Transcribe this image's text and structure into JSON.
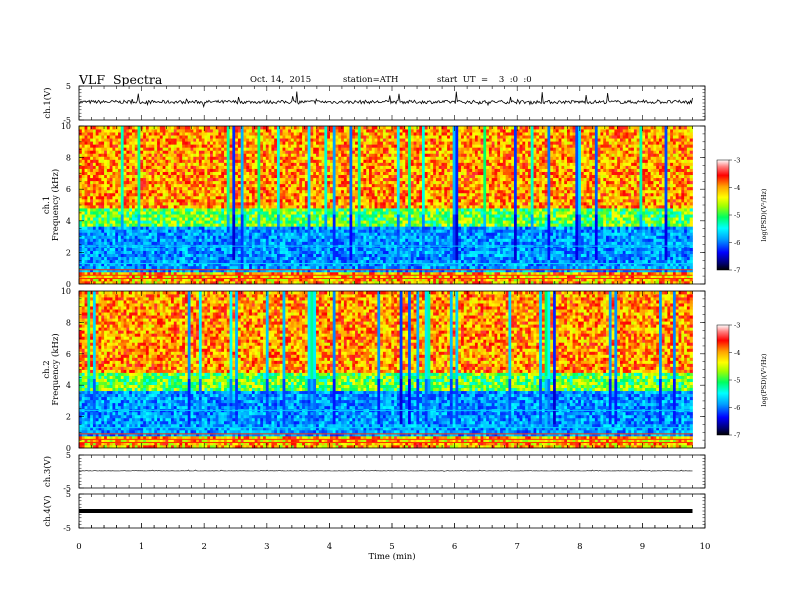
{
  "header": {
    "title": "VLF  Spectra",
    "date": "Oct. 14,  2015",
    "station": "station=ATH",
    "start": "start  UT  =    3  :0  :0"
  },
  "chart_data": [
    {
      "type": "line",
      "name": "ch1-waveform",
      "ylabel": "ch.1(V)",
      "ylim": [
        -5,
        5
      ],
      "yticks": [
        {
          "v": 5,
          "label": "5"
        },
        {
          "v": -5,
          "label": "-5"
        }
      ],
      "xlim": [
        0,
        10
      ],
      "baseline": 0.3,
      "noise": 0.5
    },
    {
      "type": "heatmap",
      "name": "ch1-spectrogram",
      "ylabel": "Frequency  (kHz)",
      "ylabel2": "ch.1",
      "xlim": [
        0,
        9.8
      ],
      "ylim": [
        0,
        10
      ],
      "yticks": [
        0,
        2,
        4,
        6,
        8,
        10
      ],
      "colorbar": {
        "label": "log(PSD)(V²/Hz)",
        "range": [
          -7,
          -3
        ],
        "ticks": [
          -3,
          -4,
          -5,
          -6,
          -7
        ]
      }
    },
    {
      "type": "heatmap",
      "name": "ch2-spectrogram",
      "ylabel": "Frequency  (kHz)",
      "ylabel2": "ch.2",
      "xlim": [
        0,
        9.8
      ],
      "ylim": [
        0,
        10
      ],
      "yticks": [
        0,
        2,
        4,
        6,
        8,
        10
      ],
      "colorbar": {
        "label": "log(PSD)(V²/Hz)",
        "range": [
          -7,
          -3
        ],
        "ticks": [
          -3,
          -4,
          -5,
          -6,
          -7
        ]
      }
    },
    {
      "type": "line",
      "name": "ch3-waveform",
      "ylabel": "ch.3(V)",
      "ylim": [
        -5,
        5
      ],
      "yticks": [
        {
          "v": 5,
          "label": "5"
        },
        {
          "v": -5,
          "label": "-5"
        }
      ],
      "xlim": [
        0,
        10
      ],
      "baseline": 0.2,
      "noise": 0.05
    },
    {
      "type": "line",
      "name": "ch4-waveform",
      "ylabel": "ch.4(V)",
      "ylim": [
        -5,
        5
      ],
      "yticks": [
        {
          "v": 5,
          "label": "5"
        },
        {
          "v": -5,
          "label": "-5"
        }
      ],
      "xlim": [
        0,
        10
      ],
      "baseline": 0.0,
      "noise": 0.0
    }
  ],
  "xaxis": {
    "label": "Time  (min)",
    "ticks": [
      "0",
      "1",
      "2",
      "3",
      "4",
      "5",
      "6",
      "7",
      "8",
      "9",
      "10"
    ],
    "range": [
      0,
      10
    ]
  }
}
